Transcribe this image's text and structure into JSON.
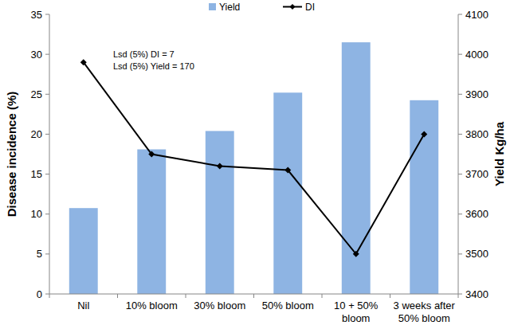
{
  "chart_data": {
    "type": "bar",
    "categories": [
      "Nil",
      "10% bloom",
      "30% bloom",
      "50% bloom",
      "10 + 50% bloom",
      "3 weeks after 50% bloom"
    ],
    "series": [
      {
        "name": "Yield",
        "type": "bar",
        "color": "#8eb4e3",
        "axis": "y2",
        "values": [
          3615,
          3762,
          3808,
          3904,
          4030,
          3885
        ]
      },
      {
        "name": "DI",
        "type": "line",
        "color": "#000000",
        "marker": "diamond",
        "values": [
          29,
          17.5,
          16,
          15.5,
          5,
          20
        ]
      }
    ],
    "ylim": [
      0,
      35
    ],
    "yticks": [
      0,
      5,
      10,
      15,
      20,
      25,
      30,
      35
    ],
    "y2lim": [
      3400,
      4100
    ],
    "y2ticks": [
      3400,
      3500,
      3600,
      3700,
      3800,
      3900,
      4000,
      4100
    ],
    "y_label": "Disease incidence (%)",
    "y2_label": "Yield Kg/ha",
    "annotations": [
      "Lsd (5%) DI = 7",
      "Lsd (5%) Yield = 170"
    ],
    "legend": "top",
    "grid": false
  }
}
